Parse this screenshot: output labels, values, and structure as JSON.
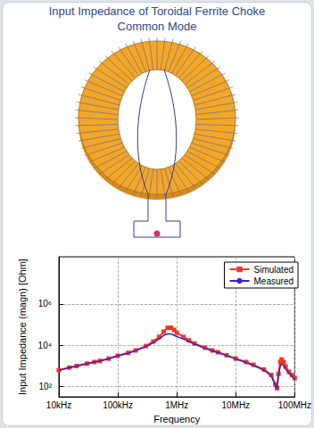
{
  "chart_data": {
    "type": "line",
    "title": "Input Impedance of Toroidal Ferrite Choke\nCommon Mode",
    "x_label": "Frequency",
    "y_label": "Input Impedance (magn) [Ohm]",
    "log": true,
    "grid": true,
    "legend": "upper right",
    "xlim": [
      10000,
      100000000
    ],
    "ylim": [
      30,
      200000000
    ],
    "xticks": [
      {
        "value": 10000,
        "label": "10kHz"
      },
      {
        "value": 100000,
        "label": "100kHz"
      },
      {
        "value": 1000000,
        "label": "1MHz"
      },
      {
        "value": 10000000,
        "label": "10MHz"
      },
      {
        "value": 100000000,
        "label": "100MHz"
      }
    ],
    "yticks": [
      {
        "value": 100,
        "label": "10²"
      },
      {
        "value": 10000,
        "label": "10⁴"
      },
      {
        "value": 1000000,
        "label": "10⁶"
      }
    ],
    "x": [
      10000,
      15000,
      20000,
      30000,
      40000,
      50000,
      70000,
      100000,
      150000,
      200000,
      300000,
      400000,
      500000,
      600000,
      700000,
      800000,
      900000,
      1000000,
      1300000,
      1600000,
      2000000,
      3000000,
      4000000,
      5000000,
      7000000,
      10000000,
      15000000,
      20000000,
      30000000,
      40000000,
      47000000,
      50000000,
      53000000,
      57000000,
      60000000,
      65000000,
      70000000,
      80000000,
      90000000,
      100000000
    ],
    "series": [
      {
        "name": "Simulated",
        "color": "#ff3322",
        "marker": "square",
        "line_style": "solid",
        "values": [
          600,
          800,
          950,
          1250,
          1500,
          1700,
          2200,
          3000,
          4200,
          5500,
          9000,
          15000,
          25000,
          45000,
          70000,
          70000,
          55000,
          40000,
          25000,
          17000,
          12000,
          7500,
          5500,
          4500,
          3200,
          2200,
          1500,
          1100,
          650,
          350,
          120,
          80,
          400,
          1500,
          2000,
          1500,
          900,
          500,
          350,
          250
        ]
      },
      {
        "name": "Measured",
        "color": "#3322cc",
        "marker": "none",
        "line_style": "solid",
        "values": [
          600,
          800,
          950,
          1250,
          1500,
          1700,
          2200,
          3000,
          4100,
          5300,
          8500,
          13000,
          20000,
          30000,
          35000,
          35000,
          30000,
          26000,
          20000,
          15000,
          11000,
          7000,
          5200,
          4300,
          3100,
          2100,
          1400,
          1000,
          600,
          320,
          110,
          75,
          300,
          1000,
          1200,
          1000,
          700,
          420,
          300,
          220
        ]
      }
    ]
  }
}
